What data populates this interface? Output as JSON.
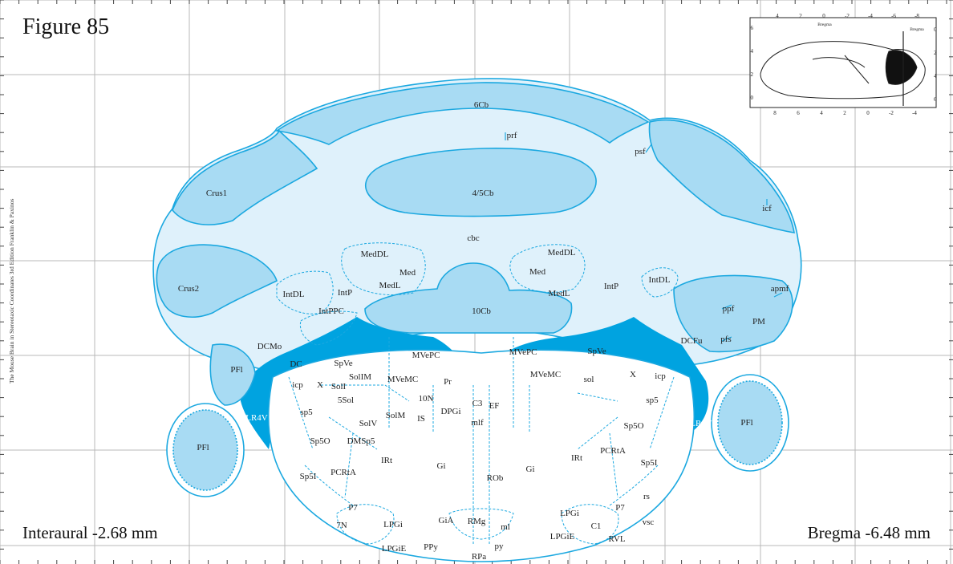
{
  "figure": {
    "title": "Figure 85",
    "interaural": "Interaural -2.68 mm",
    "bregma": "Bregma -6.48 mm",
    "credit": "The Mouse Brain in Stereotaxic Coordinates 3rd Edition  Franklin & Paxinos"
  },
  "colors": {
    "outline": "#1ba8e0",
    "light_fill": "#dff1fb",
    "medium_fill": "#a8dbf3",
    "ventricle_fill": "#00a3e0",
    "grid": "#b9b9b9"
  },
  "inset": {
    "top_axis": [
      "4",
      "2",
      "0",
      "-2",
      "-4",
      "-6",
      "-8"
    ],
    "top_caption": "Bregma",
    "bottom_axis": [
      "8",
      "6",
      "4",
      "2",
      "0",
      "-2",
      "-4"
    ],
    "left_axis": [
      "6",
      "4",
      "2",
      "0"
    ],
    "right_axis": [
      "0",
      "2",
      "4",
      "6"
    ],
    "right_caption": "Bregma"
  },
  "labels": {
    "cb6": "6Cb",
    "prf": "prf",
    "psf": "psf",
    "cb45": "4/5Cb",
    "crus1": "Crus1",
    "icf": "icf",
    "cbc": "cbc",
    "medDL_l": "MedDL",
    "medDL_r": "MedDL",
    "med_l": "Med",
    "med_r": "Med",
    "medL_l": "MedL",
    "medL_r": "MedL",
    "intDL_l": "IntDL",
    "intDL_r": "IntDL",
    "intP_l": "IntP",
    "intP_r": "IntP",
    "intPPC": "IntPPC",
    "crus2": "Crus2",
    "cb10": "10Cb",
    "apmf": "apmf",
    "ppf": "ppf",
    "pm": "PM",
    "pfs": "pfs",
    "dcfu": "DCFu",
    "dcmo": "DCMo",
    "pfl_l": "PFl",
    "pfl_r": "PFl",
    "pfl_ll": "PFl",
    "pfl_rr": "PFl",
    "dc": "DC",
    "spve_l": "SpVe",
    "spve_r": "SpVe",
    "mvepc_l": "MVePC",
    "mvepc_r": "MVePC",
    "v4": "4V",
    "solim": "SolIM",
    "mvemc_l": "MVeMC",
    "mvemc_r": "MVeMC",
    "pr": "Pr",
    "sol": "sol",
    "x_l": "X",
    "x_r": "X",
    "icp_l": "icp",
    "icp_r": "icp",
    "soll": "SolI",
    "n10": "10N",
    "c3": "C3",
    "ef": "EF",
    "sol5": "5Sol",
    "lr4v_l": "LR4V",
    "lr4v_r": "LR4V",
    "sp5_l": "sp5",
    "sp5_r": "sp5",
    "solv": "SolV",
    "solm": "SolM",
    "is": "IS",
    "dpgi": "DPGi",
    "mlf": "mlf",
    "sp5o_l": "Sp5O",
    "sp5o_r": "Sp5O",
    "dmsp5": "DMSp5",
    "irt_l": "IRt",
    "irt_r": "IRt",
    "pcrta_l": "PCRtA",
    "pcrta_r": "PCRtA",
    "gi_l": "Gi",
    "gi_r": "Gi",
    "sp5i_l": "Sp5I",
    "sp5i_r": "Sp5I",
    "rob": "ROb",
    "rs": "rs",
    "p7_l": "P7",
    "p7_r": "P7",
    "n7": "7N",
    "lpgi_l": "LPGi",
    "lpgi_r": "LPGi",
    "gia": "GiA",
    "rmg": "RMg",
    "ml": "ml",
    "vsc": "vsc",
    "c1": "C1",
    "lpgie_l": "LPGiE",
    "lpgie_r": "LPGiE",
    "ppy": "PPy",
    "py": "py",
    "rpa": "RPa",
    "rvl": "RVL"
  }
}
